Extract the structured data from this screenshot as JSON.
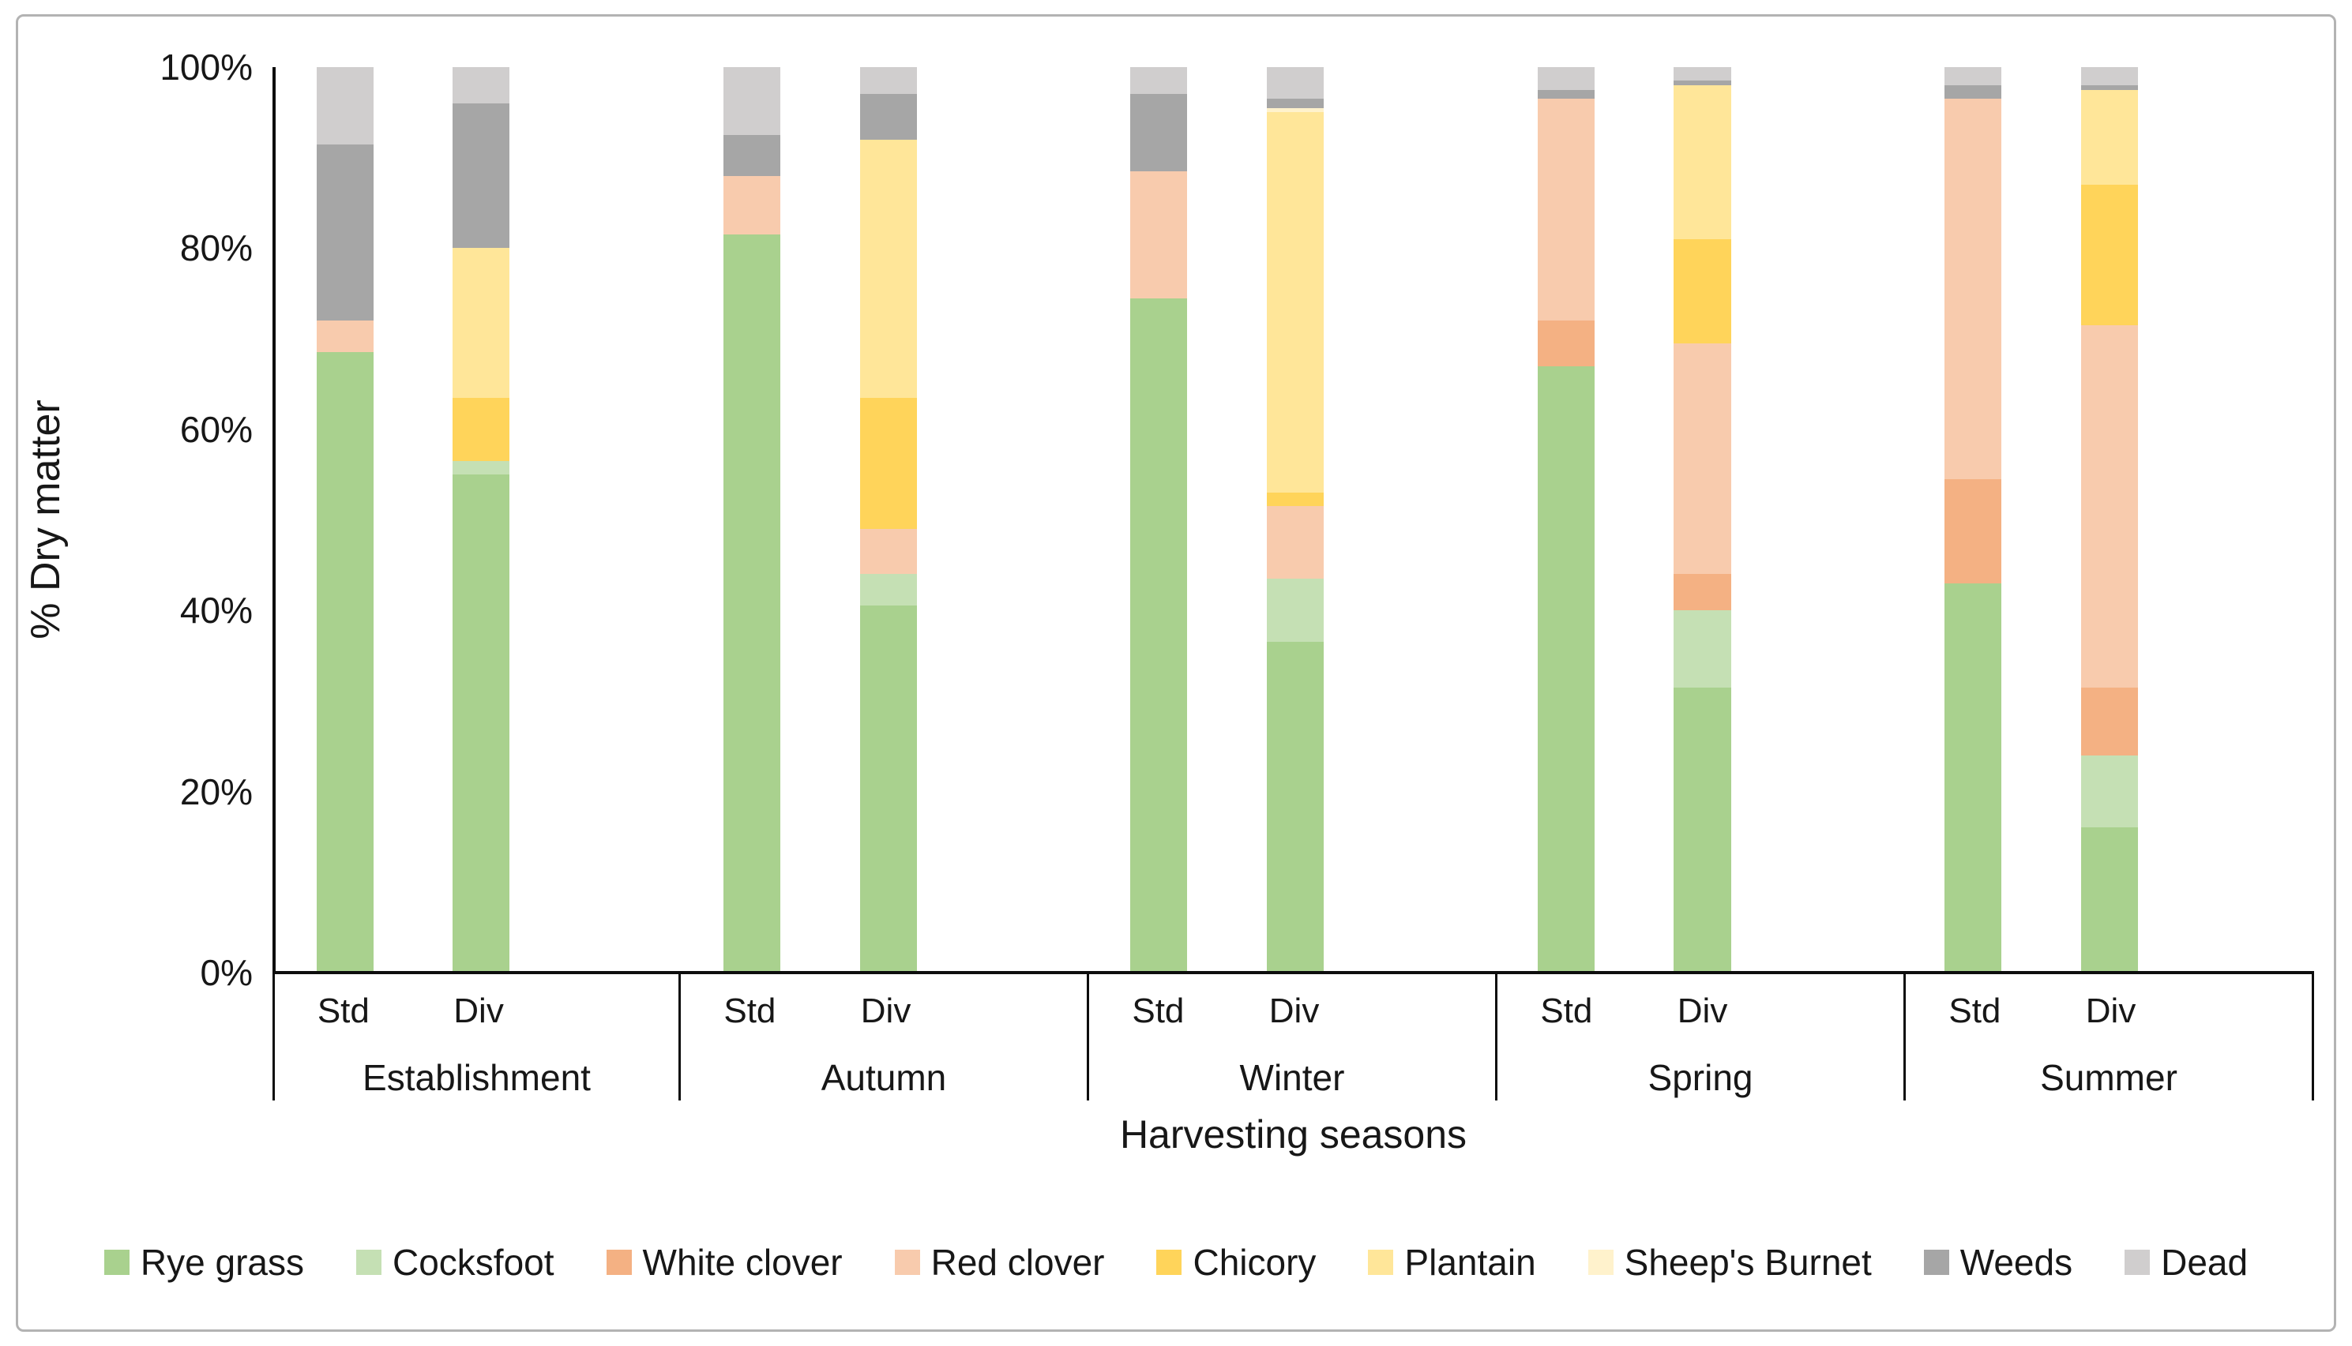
{
  "y_axis": {
    "label": "% Dry matter",
    "ticks": [
      "0%",
      "20%",
      "40%",
      "60%",
      "80%",
      "100%"
    ]
  },
  "x_axis": {
    "label": "Harvesting seasons",
    "groups": [
      "Establishment",
      "Autumn",
      "Winter",
      "Spring",
      "Summer"
    ],
    "bar_labels": [
      "Std",
      "Div"
    ]
  },
  "chart_data": {
    "type": "bar",
    "subtype": "stacked-100-percent",
    "title": "",
    "xlabel": "Harvesting seasons",
    "ylabel": "% Dry matter",
    "ylim": [
      0,
      100
    ],
    "y_tick_values": [
      0,
      20,
      40,
      60,
      80,
      100
    ],
    "y_tick_suffix": "%",
    "grid": "off",
    "legend_position": "bottom",
    "groups": [
      "Establishment",
      "Autumn",
      "Winter",
      "Spring",
      "Summer"
    ],
    "bars_per_group": [
      "Std",
      "Div"
    ],
    "column_order": [
      "Establishment Std",
      "Establishment Div",
      "Autumn Std",
      "Autumn Div",
      "Winter Std",
      "Winter Div",
      "Spring Std",
      "Spring Div",
      "Summer Std",
      "Summer Div"
    ],
    "series": [
      {
        "name": "Rye grass",
        "color": "#A9D18E",
        "values": [
          68.5,
          55,
          81.5,
          40.5,
          74.5,
          36.5,
          67,
          31.5,
          43,
          16
        ]
      },
      {
        "name": "Cocksfoot",
        "color": "#C5E0B4",
        "values": [
          0,
          1.5,
          0,
          3.5,
          0,
          7,
          0,
          8.5,
          0,
          8
        ]
      },
      {
        "name": "White clover",
        "color": "#F4B183",
        "values": [
          0,
          0,
          0,
          0,
          0,
          0,
          5,
          4,
          11.5,
          7.5
        ]
      },
      {
        "name": "Red clover",
        "color": "#F8CBAD",
        "values": [
          3.5,
          0,
          6.5,
          5,
          14,
          8,
          24.5,
          25.5,
          42,
          40
        ]
      },
      {
        "name": "Chicory",
        "color": "#FFD45A",
        "values": [
          0,
          7,
          0,
          14.5,
          0,
          1.5,
          0,
          11.5,
          0,
          15.5
        ]
      },
      {
        "name": "Plantain",
        "color": "#FFE699",
        "values": [
          0,
          16.5,
          0,
          28.5,
          0,
          42,
          0,
          17,
          0,
          10.5
        ]
      },
      {
        "name": "Sheep's Burnet",
        "color": "#FFF2CC",
        "values": [
          0,
          0,
          0,
          0,
          0,
          0.5,
          0,
          0,
          0,
          0
        ]
      },
      {
        "name": "Weeds",
        "color": "#A6A6A6",
        "values": [
          19.5,
          16,
          4.5,
          5,
          8.5,
          1,
          1,
          0.5,
          1.5,
          0.5
        ]
      },
      {
        "name": "Dead",
        "color": "#D0CECE",
        "values": [
          8.5,
          4,
          7.5,
          3,
          3,
          3.5,
          2.5,
          1.5,
          2,
          2
        ]
      }
    ]
  }
}
